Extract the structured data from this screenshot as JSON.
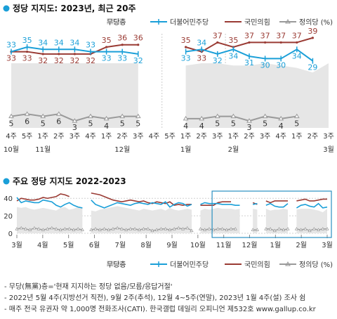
{
  "colors": {
    "dem": "#1a9fd8",
    "ppp": "#9a3b34",
    "justice": "#9a9a9a",
    "none": "#e6e6e6",
    "title_dot": "#1a9fd8",
    "highlight": "#2a8fc0"
  },
  "legend": {
    "none": "무당층",
    "dem": "더불어민주당",
    "ppp": "국민의힘",
    "justice": "정의당 (%)"
  },
  "footnotes": [
    "- 무당(無黨)층='현재 지지하는 정당 없음/모름/응답거절'",
    "- 2022년 5월 4주(지방선거 직전), 9월 2주(추석), 12월 4~5주(연말), 2023년 1월 4주(설) 조사 쉼",
    "- 매주 전국 유권자 약 1,000명 전화조사(CATI). 한국갤럽 데일리 오피니언 제532호 www.gallup.co.kr"
  ],
  "chart_data": [
    {
      "type": "line",
      "title": "정당 지지도: 2023년, 최근 20주",
      "x": [
        "4주",
        "5주",
        "1주",
        "2주",
        "3주",
        "4주",
        "1주",
        "2주",
        "3주",
        "4주",
        "5주",
        "1주",
        "2주",
        "3주",
        "1주",
        "2주",
        "3주",
        "4주",
        "1주",
        "2주",
        "3주"
      ],
      "month_labels": [
        {
          "index": 0,
          "label": "10월"
        },
        {
          "index": 2,
          "label": "11월"
        },
        {
          "index": 7,
          "label": "12월"
        },
        {
          "index": 11,
          "label": "1월"
        },
        {
          "index": 14,
          "label": "2월"
        },
        {
          "index": 20,
          "label": "3월"
        }
      ],
      "ylim": [
        0,
        42
      ],
      "series": [
        {
          "name": "무당층",
          "key": "none",
          "kind": "area",
          "values": [
            28,
            28,
            28,
            28,
            28,
            28,
            28,
            28,
            28,
            null,
            null,
            27,
            28,
            28,
            27,
            27,
            28,
            27,
            26,
            24,
            28
          ]
        },
        {
          "name": "더불어민주당",
          "key": "dem",
          "kind": "line",
          "values": [
            33,
            35,
            34,
            34,
            34,
            33,
            33,
            33,
            32,
            null,
            null,
            33,
            34,
            32,
            34,
            31,
            30,
            30,
            34,
            29,
            null
          ]
        },
        {
          "name": "국민의힘",
          "key": "ppp",
          "kind": "line",
          "values": [
            33,
            33,
            32,
            32,
            32,
            32,
            35,
            36,
            36,
            null,
            null,
            35,
            33,
            37,
            35,
            37,
            37,
            37,
            37,
            39,
            null
          ]
        },
        {
          "name": "정의당 (%)",
          "key": "justice",
          "kind": "line",
          "values": [
            5,
            6,
            5,
            6,
            3,
            5,
            4,
            5,
            5,
            null,
            null,
            4,
            4,
            5,
            5,
            3,
            5,
            4,
            5,
            null,
            null
          ]
        }
      ]
    },
    {
      "type": "line",
      "title": "주요 정당 지지도 2022-2023",
      "x_month_labels": [
        "3월",
        "4월",
        "5월",
        "6월",
        "7월",
        "8월",
        "9월",
        "10월",
        "11월",
        "12월",
        "1월",
        "2월",
        "3월"
      ],
      "ylim": [
        0,
        45
      ],
      "yticks": [
        0,
        20,
        40
      ],
      "highlight_range": [
        "11월",
        "3월"
      ],
      "series": [
        {
          "name": "무당층",
          "key": "none",
          "values": [
            30,
            29,
            30,
            28,
            27,
            28,
            29,
            28,
            27,
            26,
            29,
            30,
            27,
            28,
            30,
            29,
            null,
            26,
            25,
            27,
            28,
            29,
            30,
            31,
            30,
            29,
            28,
            27,
            26,
            28,
            27,
            26,
            27,
            28,
            26,
            29,
            27,
            26,
            27,
            28,
            27,
            null,
            26,
            28,
            27,
            28,
            29,
            28,
            28,
            28,
            27,
            28,
            null,
            null,
            28,
            27,
            null,
            28,
            26,
            27,
            27,
            28,
            27,
            null,
            27,
            28,
            28,
            28,
            27,
            26,
            24,
            28
          ]
        },
        {
          "name": "더불어민주당",
          "key": "dem",
          "values": [
            41,
            35,
            37,
            36,
            35,
            35,
            38,
            37,
            36,
            32,
            30,
            33,
            35,
            32,
            30,
            29,
            null,
            38,
            33,
            31,
            29,
            31,
            33,
            35,
            34,
            33,
            32,
            34,
            35,
            34,
            33,
            35,
            34,
            33,
            36,
            30,
            33,
            35,
            34,
            31,
            33,
            null,
            33,
            35,
            34,
            34,
            34,
            33,
            33,
            33,
            32,
            32,
            null,
            null,
            33,
            34,
            null,
            32,
            34,
            31,
            30,
            30,
            34,
            null,
            29,
            32,
            33,
            31,
            30,
            34,
            29,
            30
          ]
        },
        {
          "name": "국민의힘",
          "key": "ppp",
          "values": [
            37,
            40,
            39,
            38,
            38,
            39,
            41,
            40,
            41,
            42,
            45,
            44,
            42,
            null,
            null,
            null,
            null,
            46,
            45,
            44,
            42,
            40,
            38,
            37,
            36,
            37,
            38,
            37,
            36,
            37,
            35,
            34,
            36,
            35,
            34,
            36,
            32,
            33,
            32,
            33,
            33,
            null,
            32,
            32,
            32,
            32,
            35,
            36,
            36,
            36,
            null,
            null,
            null,
            null,
            35,
            33,
            null,
            37,
            35,
            37,
            37,
            37,
            37,
            null,
            37,
            38,
            39,
            37,
            37,
            38,
            39,
            39
          ]
        },
        {
          "name": "정의당 (%)",
          "key": "justice",
          "values": [
            5,
            6,
            5,
            4,
            6,
            5,
            4,
            5,
            6,
            5,
            4,
            5,
            5,
            4,
            5,
            4,
            null,
            4,
            5,
            4,
            5,
            4,
            5,
            6,
            5,
            4,
            5,
            5,
            4,
            5,
            5,
            3,
            4,
            5,
            5,
            4,
            5,
            6,
            5,
            6,
            3,
            null,
            5,
            4,
            5,
            4,
            5,
            5,
            4,
            5,
            5,
            null,
            null,
            null,
            4,
            4,
            null,
            5,
            5,
            3,
            5,
            4,
            5,
            null,
            5,
            4,
            5,
            3,
            5,
            4,
            5,
            5
          ]
        }
      ]
    }
  ]
}
